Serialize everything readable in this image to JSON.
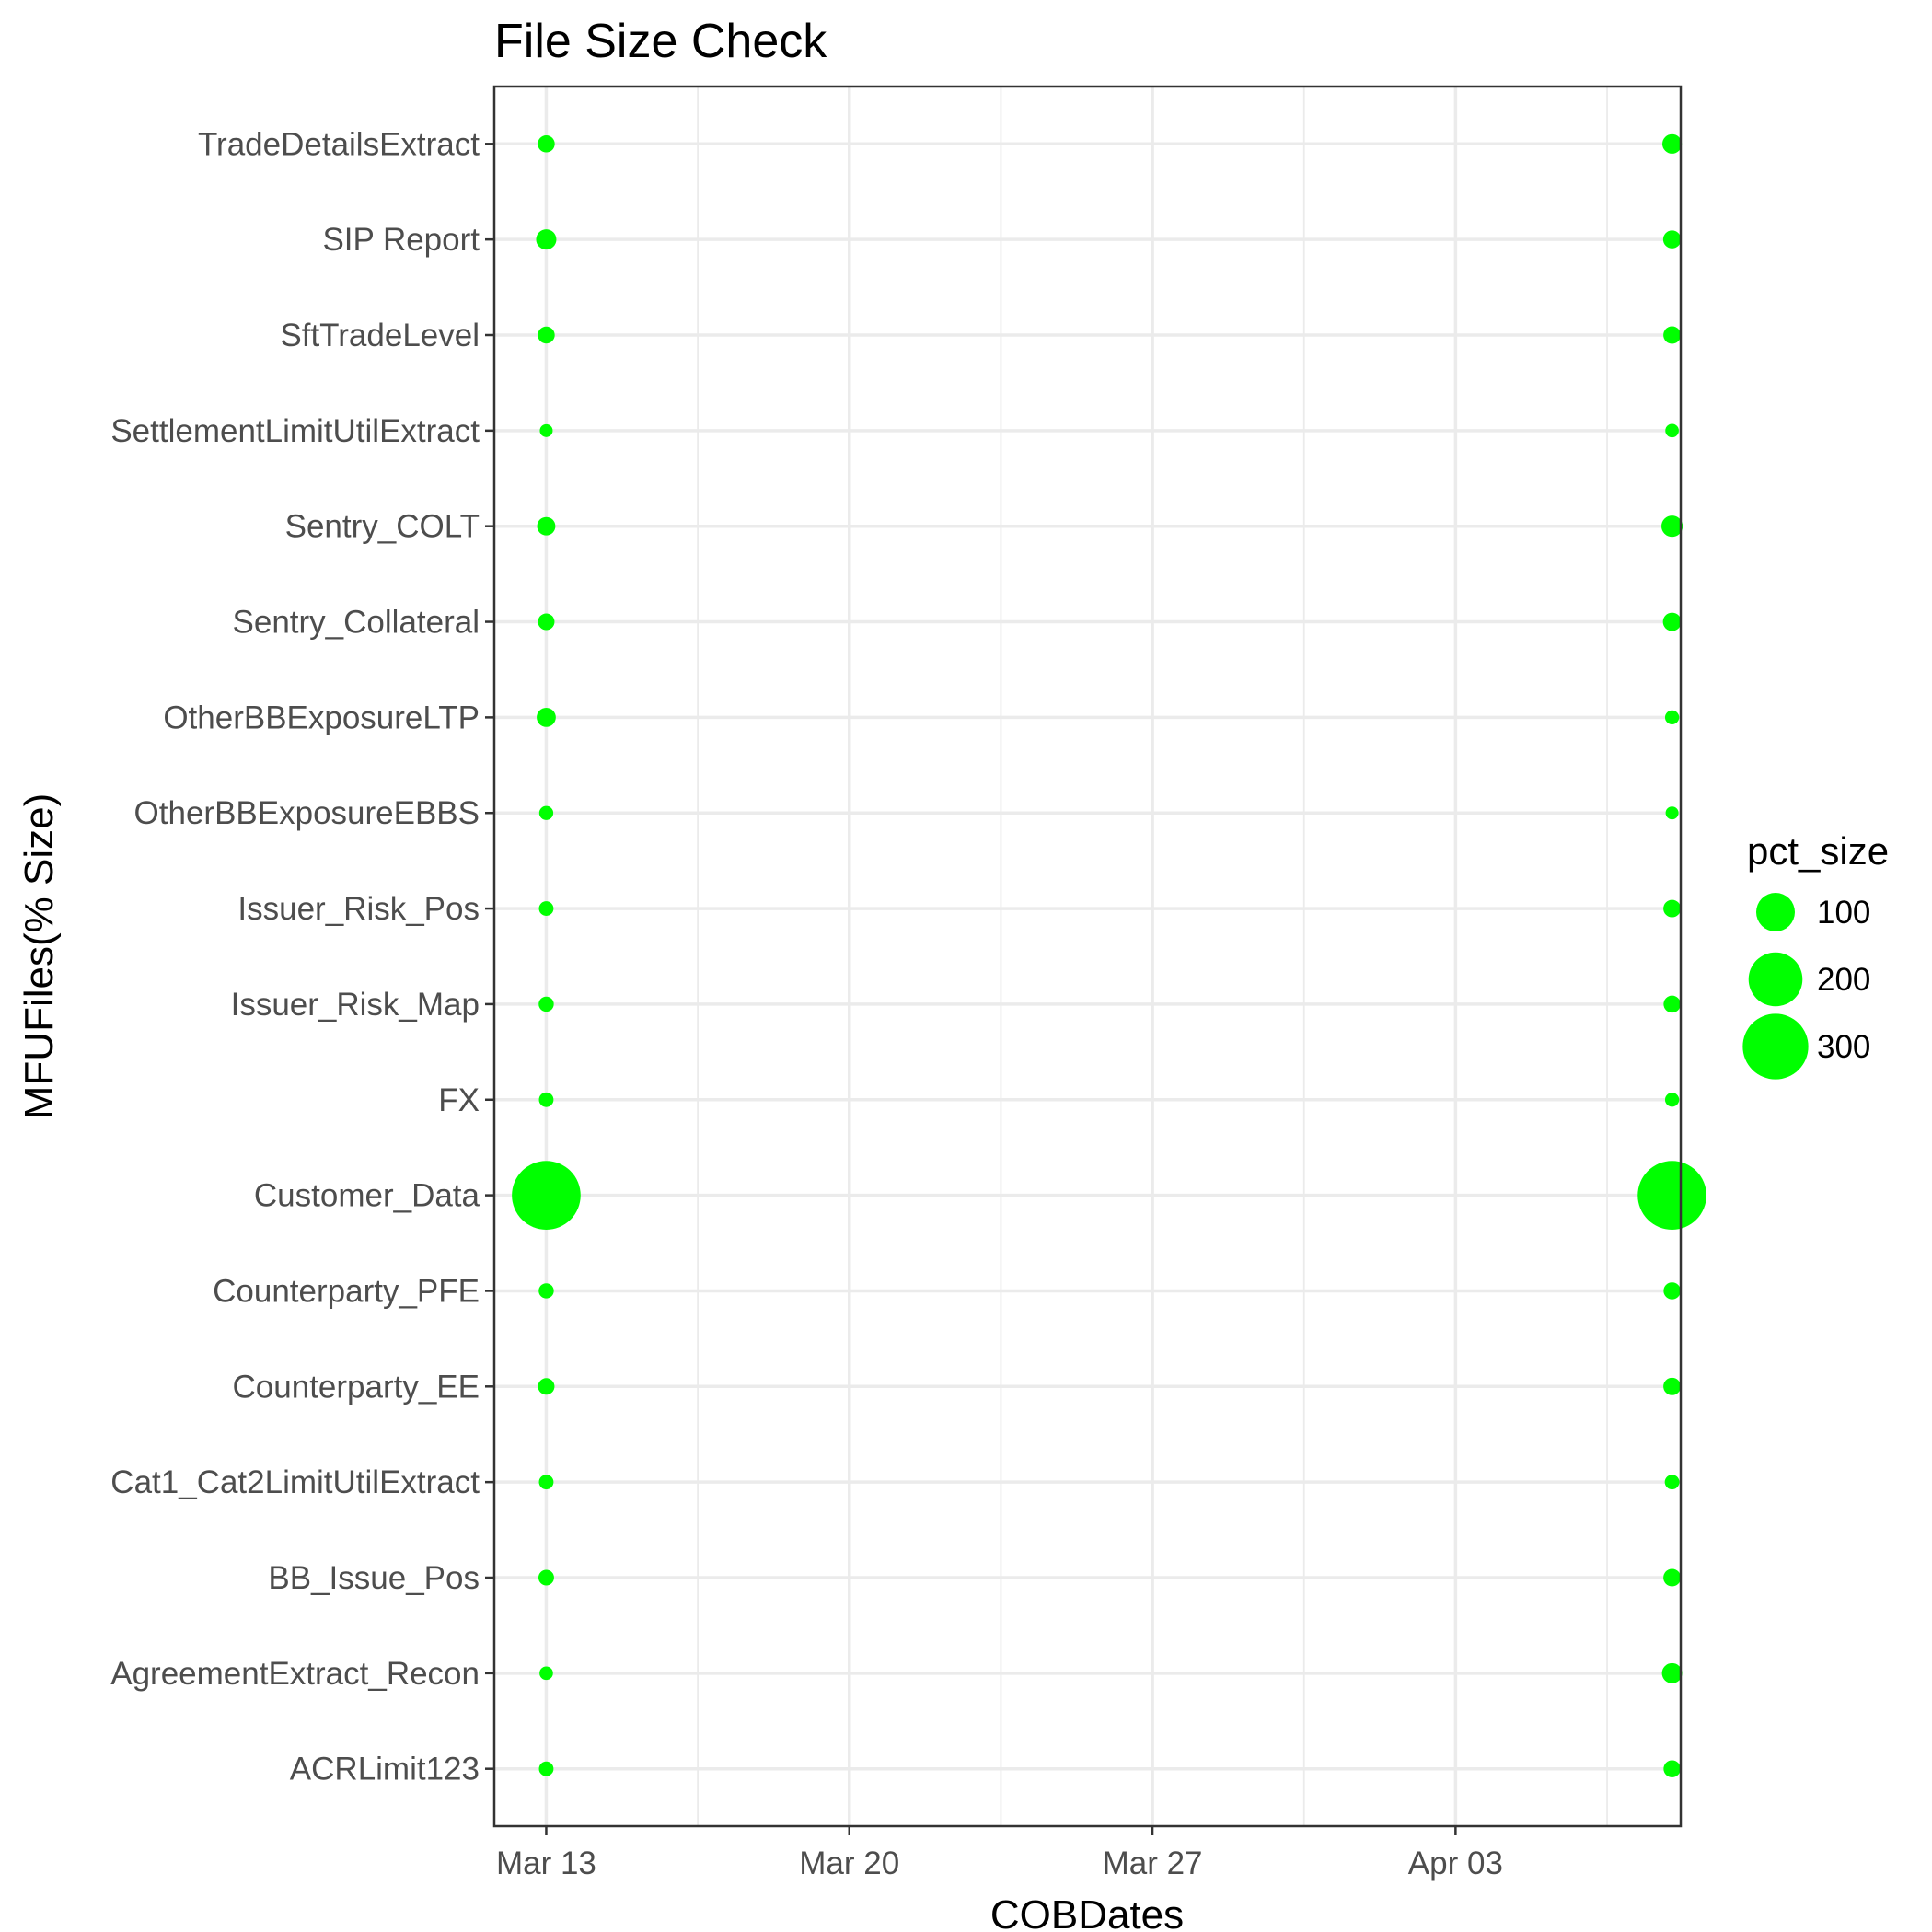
{
  "chart_data": {
    "type": "scatter",
    "title": "File Size Check",
    "xlabel": "COBDates",
    "ylabel": "MFUFiles(% Size)",
    "x_ticks": [
      "Mar 13",
      "Mar 20",
      "Mar 27",
      "Apr 03"
    ],
    "x_tick_dates": [
      "2017-03-13",
      "2017-03-20",
      "2017-03-27",
      "2017-04-03"
    ],
    "xlim": [
      "2017-03-11.8",
      "2017-04-08.2"
    ],
    "grid": true,
    "legend": {
      "title": "pct_size",
      "placement": "right",
      "entries": [
        100,
        200,
        300
      ]
    },
    "colors": {
      "point": "#00ff00"
    },
    "categories": [
      "ACRLimit123",
      "AgreementExtract_Recon",
      "BB_Issue_Pos",
      "Cat1_Cat2LimitUtilExtract",
      "Counterparty_EE",
      "Counterparty_PFE",
      "Customer_Data",
      "FX",
      "Issuer_Risk_Map",
      "Issuer_Risk_Pos",
      "OtherBBExposureEBBS",
      "OtherBBExposureLTP",
      "Sentry_Collateral",
      "Sentry_COLT",
      "SettlementLimitUtilExtract",
      "SftTradeLevel",
      "SIP Report",
      "TradeDetailsExtract"
    ],
    "series": [
      {
        "x": "2017-03-13",
        "values": [
          12,
          10,
          14,
          12,
          16,
          13,
          330,
          12,
          13,
          12,
          11,
          22,
          16,
          20,
          9,
          17,
          25,
          17
        ]
      },
      {
        "x": "2017-04-08",
        "values": [
          17,
          25,
          18,
          12,
          18,
          17,
          330,
          11,
          17,
          18,
          9,
          11,
          20,
          28,
          10,
          18,
          19,
          23
        ]
      }
    ]
  }
}
